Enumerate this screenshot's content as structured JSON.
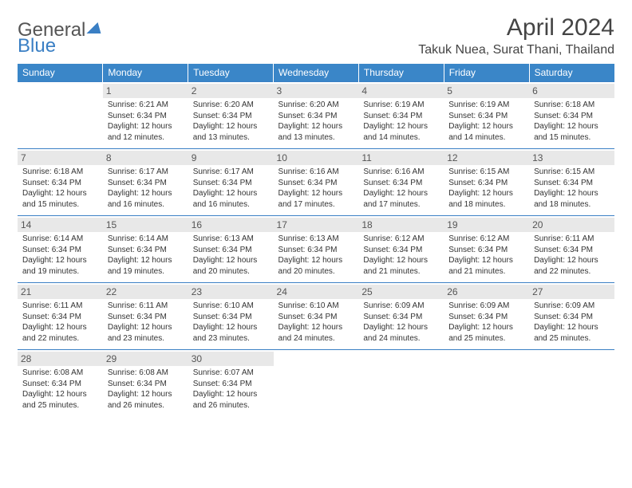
{
  "logo": {
    "part1": "General",
    "part2": "Blue"
  },
  "title": "April 2024",
  "location": "Takuk Nuea, Surat Thani, Thailand",
  "colors": {
    "header_bg": "#3a86c8",
    "header_text": "#ffffff",
    "daynum_bg": "#e8e8e8",
    "border": "#3a7fc4",
    "logo_gray": "#555555",
    "logo_blue": "#3a7fc4",
    "body_text": "#333333",
    "background": "#ffffff"
  },
  "weekdays": [
    "Sunday",
    "Monday",
    "Tuesday",
    "Wednesday",
    "Thursday",
    "Friday",
    "Saturday"
  ],
  "layout": {
    "first_weekday_index": 1,
    "days_in_month": 30,
    "weeks": 5
  },
  "days": {
    "1": {
      "sunrise": "6:21 AM",
      "sunset": "6:34 PM",
      "daylight": "12 hours and 12 minutes."
    },
    "2": {
      "sunrise": "6:20 AM",
      "sunset": "6:34 PM",
      "daylight": "12 hours and 13 minutes."
    },
    "3": {
      "sunrise": "6:20 AM",
      "sunset": "6:34 PM",
      "daylight": "12 hours and 13 minutes."
    },
    "4": {
      "sunrise": "6:19 AM",
      "sunset": "6:34 PM",
      "daylight": "12 hours and 14 minutes."
    },
    "5": {
      "sunrise": "6:19 AM",
      "sunset": "6:34 PM",
      "daylight": "12 hours and 14 minutes."
    },
    "6": {
      "sunrise": "6:18 AM",
      "sunset": "6:34 PM",
      "daylight": "12 hours and 15 minutes."
    },
    "7": {
      "sunrise": "6:18 AM",
      "sunset": "6:34 PM",
      "daylight": "12 hours and 15 minutes."
    },
    "8": {
      "sunrise": "6:17 AM",
      "sunset": "6:34 PM",
      "daylight": "12 hours and 16 minutes."
    },
    "9": {
      "sunrise": "6:17 AM",
      "sunset": "6:34 PM",
      "daylight": "12 hours and 16 minutes."
    },
    "10": {
      "sunrise": "6:16 AM",
      "sunset": "6:34 PM",
      "daylight": "12 hours and 17 minutes."
    },
    "11": {
      "sunrise": "6:16 AM",
      "sunset": "6:34 PM",
      "daylight": "12 hours and 17 minutes."
    },
    "12": {
      "sunrise": "6:15 AM",
      "sunset": "6:34 PM",
      "daylight": "12 hours and 18 minutes."
    },
    "13": {
      "sunrise": "6:15 AM",
      "sunset": "6:34 PM",
      "daylight": "12 hours and 18 minutes."
    },
    "14": {
      "sunrise": "6:14 AM",
      "sunset": "6:34 PM",
      "daylight": "12 hours and 19 minutes."
    },
    "15": {
      "sunrise": "6:14 AM",
      "sunset": "6:34 PM",
      "daylight": "12 hours and 19 minutes."
    },
    "16": {
      "sunrise": "6:13 AM",
      "sunset": "6:34 PM",
      "daylight": "12 hours and 20 minutes."
    },
    "17": {
      "sunrise": "6:13 AM",
      "sunset": "6:34 PM",
      "daylight": "12 hours and 20 minutes."
    },
    "18": {
      "sunrise": "6:12 AM",
      "sunset": "6:34 PM",
      "daylight": "12 hours and 21 minutes."
    },
    "19": {
      "sunrise": "6:12 AM",
      "sunset": "6:34 PM",
      "daylight": "12 hours and 21 minutes."
    },
    "20": {
      "sunrise": "6:11 AM",
      "sunset": "6:34 PM",
      "daylight": "12 hours and 22 minutes."
    },
    "21": {
      "sunrise": "6:11 AM",
      "sunset": "6:34 PM",
      "daylight": "12 hours and 22 minutes."
    },
    "22": {
      "sunrise": "6:11 AM",
      "sunset": "6:34 PM",
      "daylight": "12 hours and 23 minutes."
    },
    "23": {
      "sunrise": "6:10 AM",
      "sunset": "6:34 PM",
      "daylight": "12 hours and 23 minutes."
    },
    "24": {
      "sunrise": "6:10 AM",
      "sunset": "6:34 PM",
      "daylight": "12 hours and 24 minutes."
    },
    "25": {
      "sunrise": "6:09 AM",
      "sunset": "6:34 PM",
      "daylight": "12 hours and 24 minutes."
    },
    "26": {
      "sunrise": "6:09 AM",
      "sunset": "6:34 PM",
      "daylight": "12 hours and 25 minutes."
    },
    "27": {
      "sunrise": "6:09 AM",
      "sunset": "6:34 PM",
      "daylight": "12 hours and 25 minutes."
    },
    "28": {
      "sunrise": "6:08 AM",
      "sunset": "6:34 PM",
      "daylight": "12 hours and 25 minutes."
    },
    "29": {
      "sunrise": "6:08 AM",
      "sunset": "6:34 PM",
      "daylight": "12 hours and 26 minutes."
    },
    "30": {
      "sunrise": "6:07 AM",
      "sunset": "6:34 PM",
      "daylight": "12 hours and 26 minutes."
    }
  },
  "labels": {
    "sunrise": "Sunrise:",
    "sunset": "Sunset:",
    "daylight": "Daylight:"
  }
}
